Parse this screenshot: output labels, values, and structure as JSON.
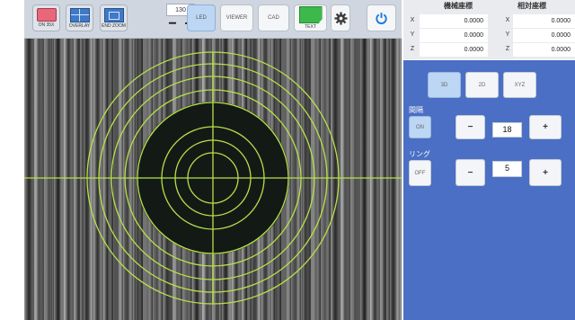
{
  "toolbar": {
    "buttons": [
      {
        "label": "ON 35X",
        "icon": "camera-icon",
        "color": "#e8677a"
      },
      {
        "label": "OVERLAY",
        "icon": "overlay-icon",
        "color": "#3f79c7"
      },
      {
        "label": "END ZOOM",
        "icon": "zoom-icon",
        "color": "#3f79c7"
      }
    ],
    "counter_value": "130",
    "minus_label": "−",
    "plus_label": "+",
    "mode_buttons": [
      "LED",
      "VIEWER",
      "CAD",
      "TEXT"
    ],
    "text_button_color": "#3db84a",
    "settings_icon": "gear-icon",
    "power_icon": "power-icon"
  },
  "coordinates": {
    "machine_header": "機械座標",
    "relative_header": "相対座標",
    "rows": [
      {
        "axis": "X",
        "machine": "0.0000",
        "relative": "0.0000"
      },
      {
        "axis": "Y",
        "machine": "0.0000",
        "relative": "0.0000"
      },
      {
        "axis": "Z",
        "machine": "0.0000",
        "relative": "0.0000"
      }
    ]
  },
  "panel": {
    "view_buttons": [
      "3D",
      "2D",
      "XYZ"
    ],
    "spacing_label": "間隔",
    "spacing_toggle": "ON",
    "spacing_minus": "−",
    "spacing_value": "18",
    "spacing_plus": "+",
    "ring_label": "リング",
    "ring_toggle": "OFF",
    "ring_minus": "−",
    "ring_value": "5",
    "ring_plus": "+"
  },
  "colors": {
    "reticle": "#b7e04a",
    "panel_bg": "#4b6fc4",
    "active_button": "#bcd6f4"
  }
}
